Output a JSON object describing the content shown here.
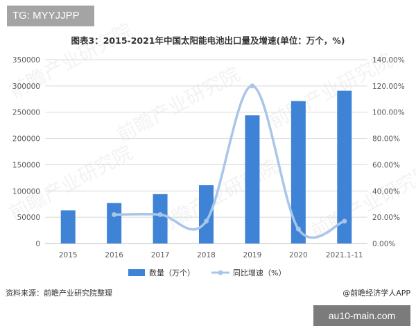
{
  "badge_text": "TG: MYYJJPP",
  "site_badge_text": "au10-main.com",
  "source_text": "资料来源：前瞻产业研究院整理",
  "credit_text": "@前瞻经济学人APP",
  "watermark_text": "前瞻产业研究院",
  "colors": {
    "bar": "#3f83d7",
    "line": "#a9c5e8",
    "grid": "#d9d9d9",
    "axis_text": "#595959"
  },
  "chart_data": {
    "type": "bar",
    "title": "图表3：2015-2021年中国太阳能电池出口量及增速(单位：万个，%)",
    "categories": [
      "2015",
      "2016",
      "2017",
      "2018",
      "2019",
      "2020",
      "2021.1-11"
    ],
    "y_left_ticks": [
      "0",
      "50000",
      "100000",
      "150000",
      "200000",
      "250000",
      "300000",
      "350000"
    ],
    "y_right_ticks": [
      "0.00%",
      "20.00%",
      "40.00%",
      "60.00%",
      "80.00%",
      "100.00%",
      "120.00%",
      "140.00%"
    ],
    "ylim_left": [
      0,
      350000
    ],
    "ylim_right": [
      0,
      140
    ],
    "grid": true,
    "legend_position": "bottom",
    "series": [
      {
        "name": "数量（万个）",
        "type": "bar",
        "axis": "left",
        "values": [
          63000,
          77000,
          94000,
          111000,
          244000,
          271000,
          291000
        ]
      },
      {
        "name": "同比增速（%）",
        "type": "line",
        "axis": "right",
        "smooth": true,
        "values": [
          null,
          22,
          22,
          17,
          120,
          11,
          17
        ]
      }
    ]
  }
}
